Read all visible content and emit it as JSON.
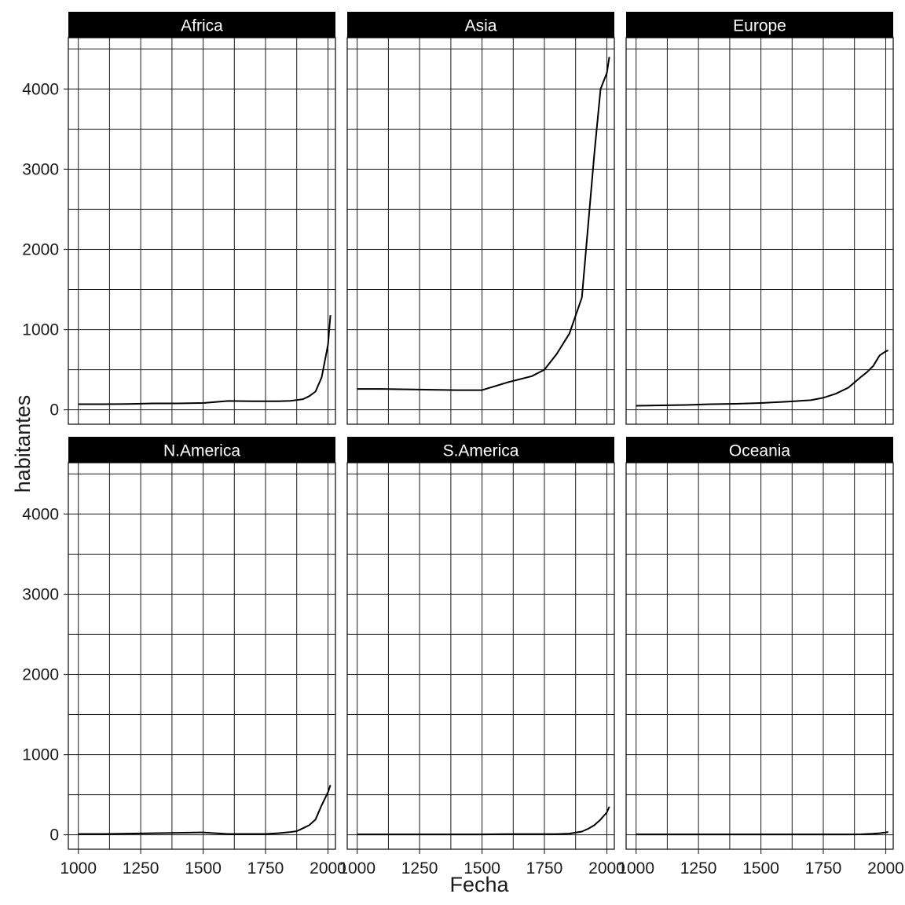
{
  "chart_data": {
    "type": "line",
    "layout": "facet-grid-2x3",
    "xlabel": "Fecha",
    "ylabel": "habitantes",
    "xlim": [
      960,
      2030
    ],
    "ylim": [
      -180,
      4640
    ],
    "x_ticks": [
      1000,
      1250,
      1500,
      1750,
      2000
    ],
    "x_tick_labels": [
      "1000",
      "1250",
      "1500",
      "1750",
      "2000"
    ],
    "y_ticks": [
      0,
      1000,
      2000,
      3000,
      4000
    ],
    "y_tick_labels": [
      "0",
      "1000",
      "2000",
      "3000",
      "4000"
    ],
    "x_minor_ticks": [
      1125,
      1375,
      1625,
      1875
    ],
    "y_minor_ticks": [
      500,
      1500,
      2500,
      3500,
      4500
    ],
    "grid": true,
    "line_color": "#000000",
    "strip_color": "#000000",
    "panels": [
      {
        "name": "Africa",
        "x": [
          1000,
          1100,
          1200,
          1300,
          1400,
          1500,
          1600,
          1700,
          1750,
          1800,
          1850,
          1900,
          1925,
          1950,
          1975,
          2000,
          2010
        ],
        "values": [
          70,
          70,
          72,
          80,
          80,
          85,
          110,
          107,
          106,
          107,
          111,
          133,
          170,
          227,
          406,
          810,
          1180
        ]
      },
      {
        "name": "Asia",
        "x": [
          1000,
          1100,
          1200,
          1300,
          1400,
          1500,
          1600,
          1700,
          1750,
          1800,
          1850,
          1900,
          1950,
          1975,
          2000,
          2010
        ],
        "values": [
          260,
          260,
          255,
          250,
          245,
          245,
          340,
          420,
          500,
          700,
          950,
          1400,
          3200,
          4000,
          4200,
          4400
        ]
      },
      {
        "name": "Europe",
        "x": [
          1000,
          1100,
          1200,
          1300,
          1400,
          1500,
          1600,
          1700,
          1750,
          1800,
          1850,
          1900,
          1925,
          1950,
          1975,
          2000,
          2010
        ],
        "values": [
          50,
          55,
          60,
          70,
          75,
          85,
          100,
          120,
          150,
          200,
          276,
          408,
          470,
          547,
          676,
          729,
          740
        ]
      },
      {
        "name": "N.America",
        "x": [
          1000,
          1100,
          1200,
          1300,
          1400,
          1500,
          1550,
          1600,
          1700,
          1750,
          1800,
          1850,
          1875,
          1900,
          1925,
          1950,
          1975,
          2000,
          2010
        ],
        "values": [
          10,
          10,
          15,
          20,
          25,
          30,
          20,
          10,
          10,
          10,
          20,
          35,
          45,
          82,
          120,
          190,
          370,
          530,
          620
        ]
      },
      {
        "name": "S.America",
        "x": [
          1000,
          1100,
          1200,
          1300,
          1400,
          1500,
          1600,
          1700,
          1750,
          1800,
          1850,
          1900,
          1925,
          1950,
          1975,
          2000,
          2010
        ],
        "values": [
          5,
          5,
          5,
          5,
          5,
          5,
          8,
          8,
          8,
          9,
          15,
          40,
          75,
          120,
          190,
          280,
          350
        ]
      },
      {
        "name": "Oceania",
        "x": [
          1000,
          1250,
          1500,
          1750,
          1800,
          1850,
          1900,
          1950,
          1975,
          2000,
          2010
        ],
        "values": [
          5,
          5,
          5,
          5,
          5,
          5,
          6,
          13,
          20,
          30,
          36
        ]
      }
    ]
  }
}
